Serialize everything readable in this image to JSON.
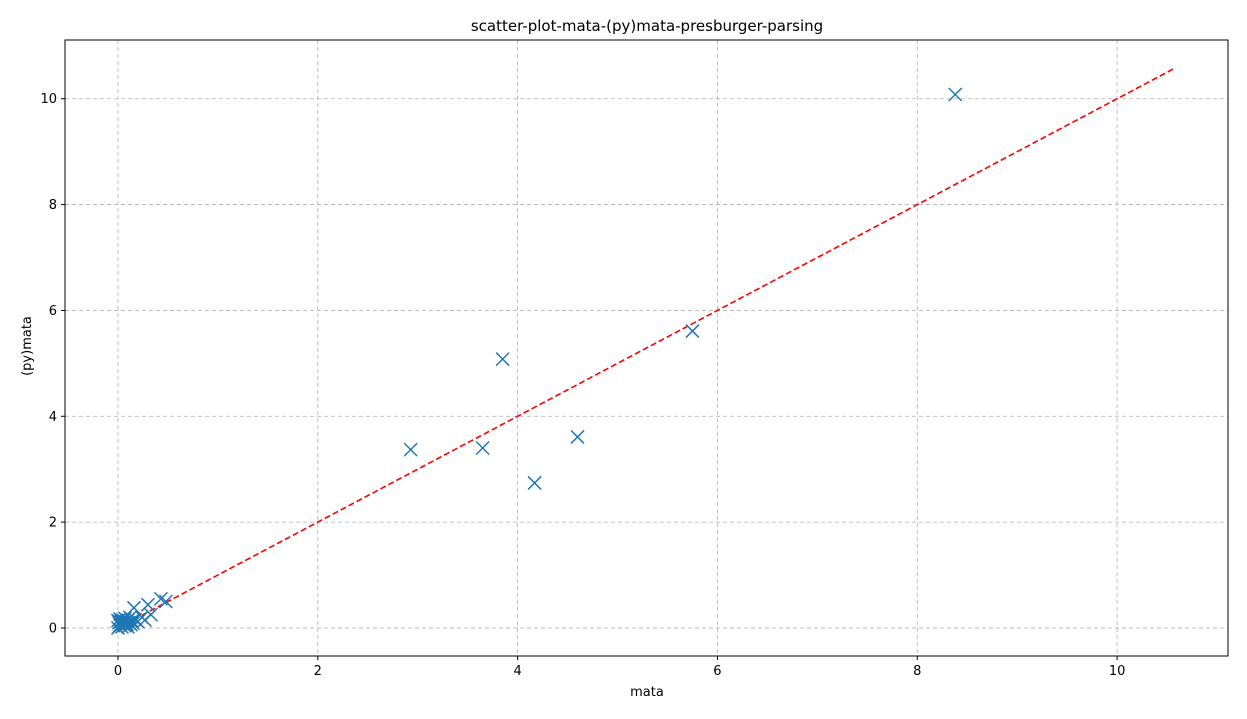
{
  "chart_data": {
    "type": "scatter",
    "title": "scatter-plot-mata-(py)mata-presburger-parsing",
    "xlabel": "mata",
    "ylabel": "(py)mata",
    "xlim": [
      -0.53,
      11.11
    ],
    "ylim": [
      -0.53,
      11.11
    ],
    "xticks": [
      0,
      2,
      4,
      6,
      8,
      10
    ],
    "yticks": [
      0,
      2,
      4,
      6,
      8,
      10
    ],
    "grid": true,
    "marker": "x",
    "series": [
      {
        "color": "#1f77b4",
        "points": [
          [
            0.0,
            0.0
          ],
          [
            0.0,
            0.14
          ],
          [
            0.01,
            0.1
          ],
          [
            0.02,
            0.05
          ],
          [
            0.02,
            0.17
          ],
          [
            0.03,
            0.12
          ],
          [
            0.04,
            0.02
          ],
          [
            0.05,
            0.08
          ],
          [
            0.05,
            0.15
          ],
          [
            0.06,
            0.1
          ],
          [
            0.07,
            0.04
          ],
          [
            0.07,
            0.18
          ],
          [
            0.08,
            0.12
          ],
          [
            0.09,
            0.07
          ],
          [
            0.1,
            0.15
          ],
          [
            0.1,
            0.02
          ],
          [
            0.11,
            0.1
          ],
          [
            0.12,
            0.2
          ],
          [
            0.13,
            0.06
          ],
          [
            0.14,
            0.13
          ],
          [
            0.15,
            0.09
          ],
          [
            0.16,
            0.38
          ],
          [
            0.17,
            0.16
          ],
          [
            0.2,
            0.12
          ],
          [
            0.24,
            0.2
          ],
          [
            0.27,
            0.15
          ],
          [
            0.3,
            0.44
          ],
          [
            0.33,
            0.25
          ],
          [
            0.43,
            0.55
          ],
          [
            0.48,
            0.5
          ],
          [
            2.93,
            3.37
          ],
          [
            3.65,
            3.4
          ],
          [
            3.85,
            5.08
          ],
          [
            4.17,
            2.74
          ],
          [
            4.6,
            3.61
          ],
          [
            5.75,
            5.61
          ],
          [
            8.38,
            10.08
          ]
        ]
      }
    ],
    "reference_line": {
      "color": "#ff0000",
      "style": "dashed",
      "from": [
        0,
        0
      ],
      "to": [
        10.58,
        10.58
      ]
    }
  }
}
